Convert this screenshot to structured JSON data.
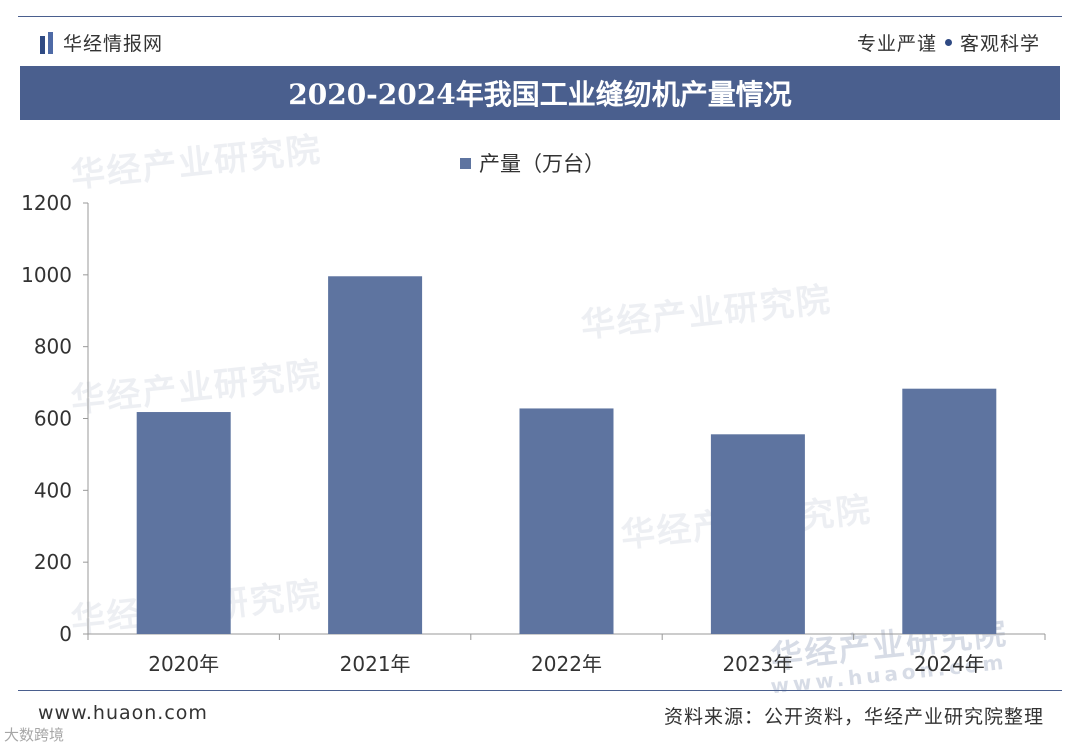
{
  "header": {
    "brand_name": "华经情报网",
    "slogan_left": "专业严谨",
    "slogan_right": "客观科学"
  },
  "chart_data": {
    "type": "bar",
    "title": "2020-2024年我国工业缝纫机产量情况",
    "categories": [
      "2020年",
      "2021年",
      "2022年",
      "2023年",
      "2024年"
    ],
    "series": [
      {
        "name": "产量（万台）",
        "values": [
          618,
          996,
          628,
          556,
          683
        ],
        "color": "#5e74a0"
      }
    ],
    "ylim": [
      0,
      1200
    ],
    "yticks": [
      0,
      200,
      400,
      600,
      800,
      1000,
      1200
    ],
    "legend": "top-center",
    "grid": false
  },
  "footer": {
    "url": "www.huaon.com",
    "source": "资料来源：公开资料，华经产业研究院整理"
  },
  "watermarks": [
    "华经产业研究院",
    "www.huaon.com"
  ],
  "corner_tag": "大数跨境"
}
